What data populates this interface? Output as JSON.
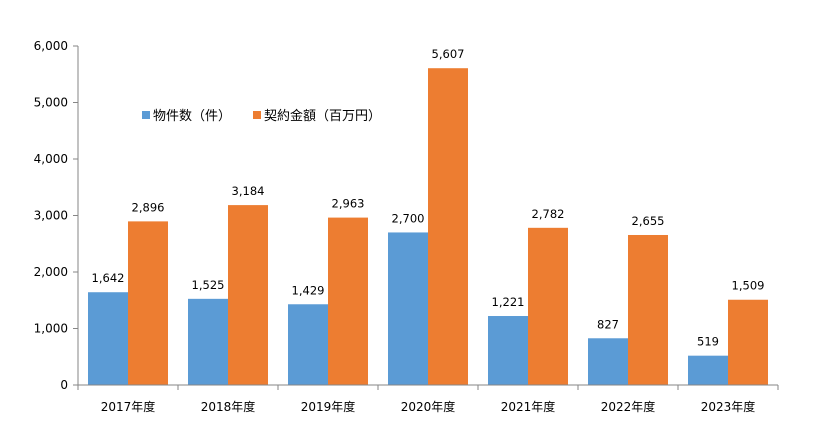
{
  "chart_data": {
    "type": "bar",
    "title": "",
    "xlabel": "",
    "ylabel": "",
    "categories": [
      "2017年度",
      "2018年度",
      "2019年度",
      "2020年度",
      "2021年度",
      "2022年度",
      "2023年度"
    ],
    "series": [
      {
        "name": "物件数（件）",
        "color": "#5b9bd5",
        "values": [
          1642,
          1525,
          1429,
          2700,
          1221,
          827,
          519
        ]
      },
      {
        "name": "契約金額（百万円）",
        "color": "#ed7d31",
        "values": [
          2896,
          3184,
          2963,
          5607,
          2782,
          2655,
          1509
        ]
      }
    ],
    "ylim": [
      0,
      6000
    ],
    "yticks": [
      0,
      1000,
      2000,
      3000,
      4000,
      5000,
      6000
    ],
    "ytick_labels": [
      "0",
      "1,000",
      "2,000",
      "3,000",
      "4,000",
      "5,000",
      "6,000"
    ],
    "data_labels": [
      [
        "1,642",
        "1,525",
        "1,429",
        "2,700",
        "1,221",
        "827",
        "519"
      ],
      [
        "2,896",
        "3,184",
        "2,963",
        "5,607",
        "2,782",
        "2,655",
        "1,509"
      ]
    ],
    "grid": false,
    "legend": "top-left inside plot"
  }
}
